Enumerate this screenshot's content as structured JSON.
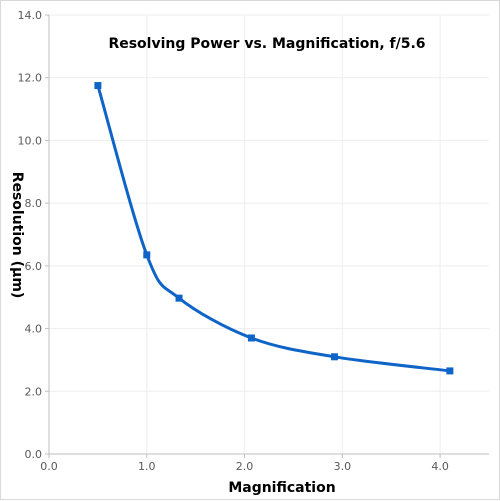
{
  "chart_data": {
    "type": "line",
    "title": "Resolving Power vs. Magnification, f/5.6",
    "xlabel": "Magnification",
    "ylabel": "Resolution (µm)",
    "xlim": [
      0.0,
      4.5
    ],
    "ylim": [
      0.0,
      14.0
    ],
    "x_ticks": [
      "0.0",
      "1.0",
      "2.0",
      "3.0",
      "4.0"
    ],
    "y_ticks": [
      "0.0",
      "2.0",
      "4.0",
      "6.0",
      "8.0",
      "10.0",
      "12.0",
      "14.0"
    ],
    "grid": true,
    "smooth": true,
    "series": [
      {
        "x": [
          0.5,
          1.0,
          1.33,
          2.07,
          2.92,
          4.1
        ],
        "y": [
          11.75,
          6.35,
          4.97,
          3.7,
          3.1,
          2.65
        ],
        "color": "#0f64c8",
        "marker": "square"
      }
    ]
  }
}
